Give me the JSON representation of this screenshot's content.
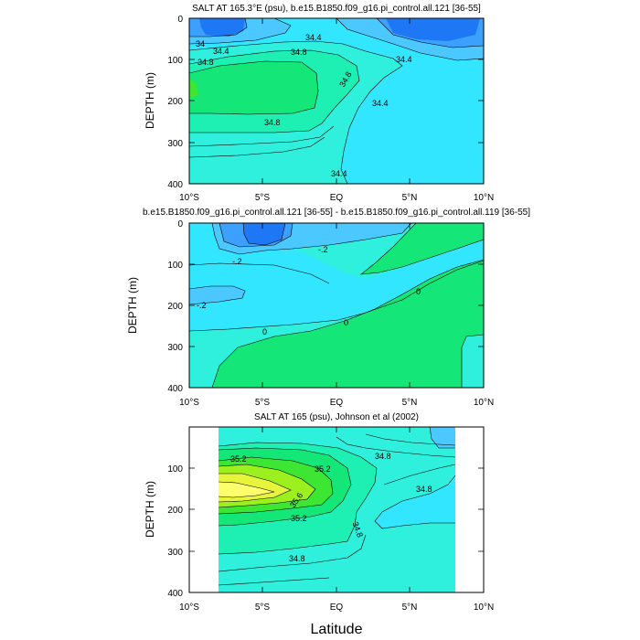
{
  "chart_data": [
    {
      "type": "contour",
      "title": "SALT AT 165.3°E (psu), b.e15.B1850.f09_g16.pi_control.all.121 [36-55]",
      "xlabel": "",
      "ylabel": "DEPTH (m)",
      "xlim": [
        -10,
        10
      ],
      "ylim": [
        400,
        0
      ],
      "x_ticks": [
        "10°S",
        "5°S",
        "EQ",
        "5°N",
        "10°N"
      ],
      "y_ticks": [
        "0",
        "100",
        "200",
        "300",
        "400"
      ],
      "contour_labels": [
        "34",
        "34.4",
        "34.4",
        "34.8",
        "34.8",
        "34.8",
        "34.4",
        "34.8",
        "34.4",
        "34.4"
      ]
    },
    {
      "type": "contour",
      "title": "b.e15.B1850.f09_g16.pi_control.all.121 [36-55] - b.e15.B1850.f09_g16.pi_control.all.119 [36-55]",
      "xlabel": "",
      "ylabel": "DEPTH (m)",
      "xlim": [
        -10,
        10
      ],
      "ylim": [
        400,
        0
      ],
      "x_ticks": [
        "10°S",
        "5°S",
        "EQ",
        "5°N",
        "10°N"
      ],
      "y_ticks": [
        "0",
        "100",
        "200",
        "300",
        "400"
      ],
      "contour_labels": [
        "-.2",
        "-.2",
        "-.2",
        "0",
        "0",
        "0"
      ]
    },
    {
      "type": "contour",
      "title": "SALT AT 165 (psu), Johnson et al (2002)",
      "xlabel": "Latitude",
      "ylabel": "DEPTH (m)",
      "xlim": [
        -10,
        10
      ],
      "ylim": [
        400,
        0
      ],
      "x_ticks": [
        "10°S",
        "5°S",
        "EQ",
        "5°N",
        "10°N"
      ],
      "y_ticks": [
        "0",
        "100",
        "200",
        "300",
        "400"
      ],
      "contour_labels": [
        "35.2",
        "35.2",
        "35.6",
        "35.2",
        "34.8",
        "34.8",
        "34.8",
        "34.8"
      ]
    }
  ],
  "colors": {
    "dark_blue": "#1E78F5",
    "mid_blue": "#3CA0FF",
    "light_blue": "#4BC8FF",
    "cyan": "#32E6FF",
    "aqua": "#2EF0DC",
    "teal_green": "#1EF0B4",
    "green": "#14E678",
    "bright_green": "#3CE632",
    "lime": "#9BF01E",
    "yellow_green": "#E6F53C",
    "yellow": "#FFFF6E"
  }
}
